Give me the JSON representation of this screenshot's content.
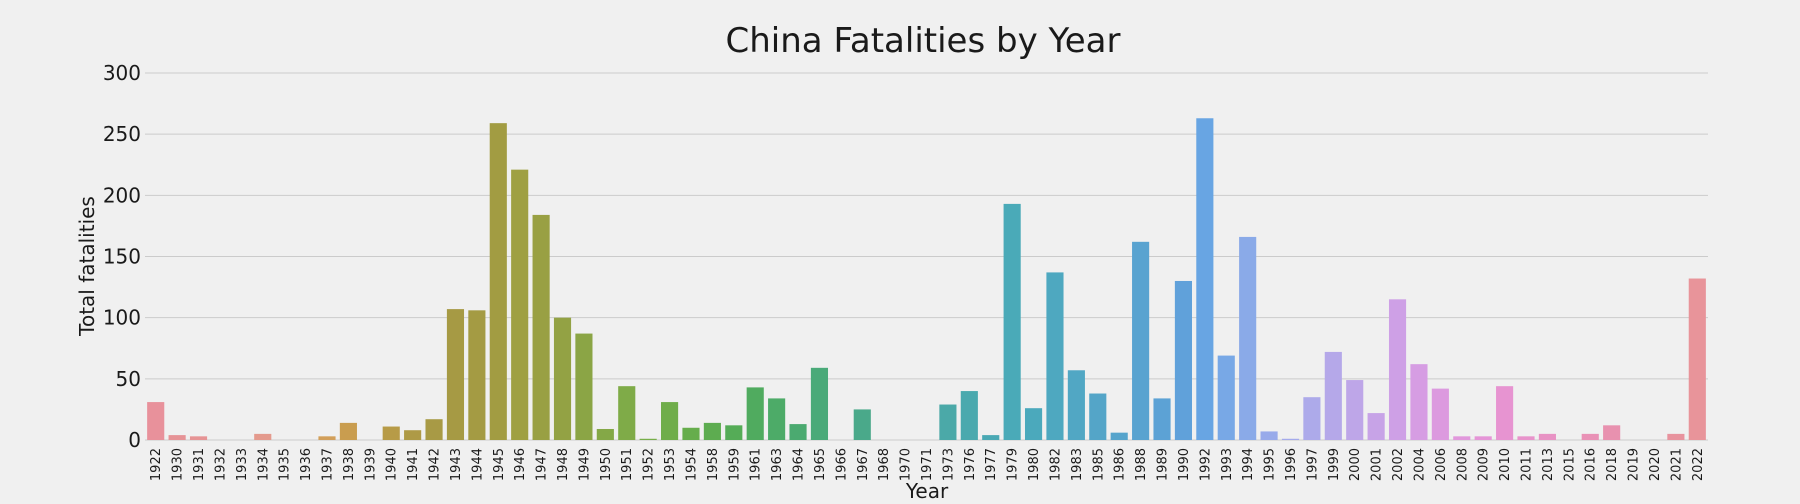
{
  "chart_data": {
    "type": "bar",
    "title": "China Fatalities by Year",
    "xlabel": "Year",
    "ylabel": "Total fatalities",
    "ylim": [
      0,
      300
    ],
    "yticks": [
      "0",
      "50",
      "100",
      "150",
      "200",
      "250",
      "300"
    ],
    "grid": true,
    "categories": [
      "1922",
      "1930",
      "1931",
      "1932",
      "1933",
      "1934",
      "1935",
      "1936",
      "1937",
      "1938",
      "1939",
      "1940",
      "1941",
      "1942",
      "1943",
      "1944",
      "1945",
      "1946",
      "1947",
      "1948",
      "1949",
      "1950",
      "1951",
      "1952",
      "1953",
      "1954",
      "1958",
      "1959",
      "1961",
      "1963",
      "1964",
      "1965",
      "1966",
      "1967",
      "1968",
      "1970",
      "1971",
      "1973",
      "1976",
      "1977",
      "1979",
      "1980",
      "1982",
      "1983",
      "1985",
      "1986",
      "1988",
      "1989",
      "1990",
      "1992",
      "1993",
      "1994",
      "1995",
      "1996",
      "1997",
      "1999",
      "2000",
      "2001",
      "2002",
      "2004",
      "2006",
      "2008",
      "2009",
      "2010",
      "2011",
      "2013",
      "2015",
      "2016",
      "2018",
      "2019",
      "2020",
      "2021",
      "2022"
    ],
    "values": [
      31,
      4,
      3,
      0,
      0,
      5,
      0,
      0,
      3,
      14,
      0,
      11,
      8,
      17,
      107,
      106,
      259,
      221,
      184,
      100,
      87,
      9,
      44,
      1,
      31,
      10,
      14,
      12,
      43,
      34,
      13,
      59,
      0,
      25,
      0,
      0,
      0,
      29,
      40,
      4,
      193,
      26,
      137,
      57,
      38,
      6,
      162,
      34,
      130,
      263,
      69,
      166,
      7,
      1,
      35,
      72,
      49,
      22,
      115,
      62,
      42,
      3,
      3,
      44,
      3,
      5,
      0,
      5,
      12,
      0,
      0,
      5,
      132
    ],
    "colors": [
      "#e8919b",
      "#e69396",
      "#e69495",
      "#e69693",
      "#e69890",
      "#e49a8d",
      "#e39c8b",
      "#e19e87",
      "#d29f5a",
      "#c99d4f",
      "#c09c4a",
      "#b79b47",
      "#ae9a46",
      "#a89a45",
      "#a69a44",
      "#a49b43",
      "#a29c42",
      "#9fa042",
      "#99a043",
      "#93a244",
      "#8ba545",
      "#84a847",
      "#7fab48",
      "#77ae49",
      "#6fad4a",
      "#66ad4c",
      "#5dac50",
      "#55ac57",
      "#50ab5f",
      "#4dab68",
      "#4baa70",
      "#4aaa79",
      "#4aaa82",
      "#4aa98a",
      "#4aa992",
      "#4aa99a",
      "#4ba9a1",
      "#4ba9a8",
      "#4aa9ae",
      "#4aa9b4",
      "#4aaab8",
      "#4ba9bc",
      "#4ea8c0",
      "#51a7c4",
      "#54a5c8",
      "#56a4cc",
      "#59a3d0",
      "#5ca2d5",
      "#60a1da",
      "#68a5e3",
      "#78a8e6",
      "#8aaae8",
      "#98aaea",
      "#a4aaeb",
      "#adaaea",
      "#b5a8e9",
      "#bea6e8",
      "#c7a3e7",
      "#cea0e6",
      "#d69de3",
      "#dc9adf",
      "#e198dc",
      "#e595d7",
      "#e794d1",
      "#e893cb",
      "#e892c4",
      "#e991bd",
      "#e991b6",
      "#e891af",
      "#e892a9",
      "#e892a3",
      "#e8939e",
      "#e8949a"
    ]
  }
}
